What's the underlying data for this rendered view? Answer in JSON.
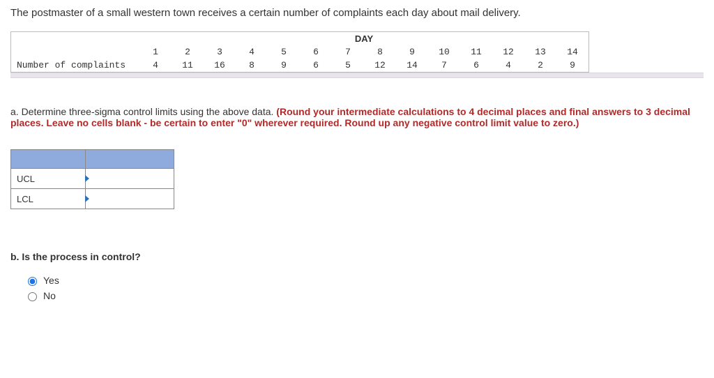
{
  "intro": "The postmaster of a small western town receives a certain number of complaints each day about mail delivery.",
  "table": {
    "day_label": "DAY",
    "row_label": "Number of complaints",
    "days": [
      "1",
      "2",
      "3",
      "4",
      "5",
      "6",
      "7",
      "8",
      "9",
      "10",
      "11",
      "12",
      "13",
      "14"
    ],
    "complaints": [
      "4",
      "11",
      "16",
      "8",
      "9",
      "6",
      "5",
      "12",
      "14",
      "7",
      "6",
      "4",
      "2",
      "9"
    ]
  },
  "part_a": {
    "prefix": "a. Determine three-sigma control limits using the above data. ",
    "instruction": "(Round your intermediate calculations to 4 decimal places and final answers to 3 decimal places. Leave no cells blank - be certain to enter \"0\" wherever required. Round up any negative control limit value to zero.)",
    "ucl_label": "UCL",
    "lcl_label": "LCL"
  },
  "part_b": {
    "question": "b. Is the process in control?",
    "yes_label": "Yes",
    "no_label": "No",
    "selected": "yes"
  }
}
